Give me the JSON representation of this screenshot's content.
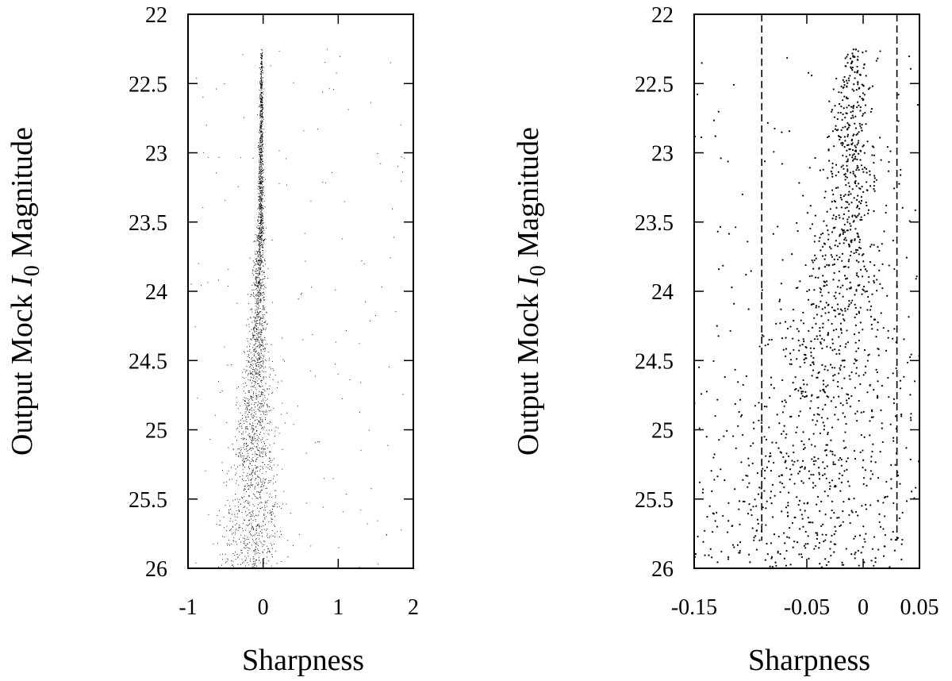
{
  "chart_data": [
    {
      "type": "scatter",
      "xlabel": "Sharpness",
      "ylabel": {
        "prefix": "Output Mock ",
        "italic": "I",
        "subscript": "0",
        "suffix": " Magnitude"
      },
      "xlim": [
        -1,
        2
      ],
      "ylim": [
        26,
        22
      ],
      "y_inverted": true,
      "xticks": [
        -1,
        0,
        1,
        2
      ],
      "xtick_labels": [
        "-1",
        "0",
        "1",
        "2"
      ],
      "yticks": [
        22,
        22.5,
        23,
        23.5,
        24,
        24.5,
        25,
        25.5,
        26
      ],
      "ytick_labels": [
        "22",
        "22.5",
        "23",
        "23.5",
        "24",
        "24.5",
        "25",
        "25.5",
        "26"
      ],
      "grid": false,
      "marker": "dot",
      "point_color": "#000000",
      "distribution": {
        "description_points": [
          {
            "mag": 22.25,
            "center": -0.02,
            "spread": 0.01
          },
          {
            "mag": 23.5,
            "center": -0.03,
            "spread": 0.03
          },
          {
            "mag": 24.5,
            "center": -0.08,
            "spread": 0.1
          },
          {
            "mag": 25.0,
            "center": -0.12,
            "spread": 0.2
          },
          {
            "mag": 26.0,
            "center": -0.15,
            "spread": 0.3
          }
        ],
        "mag_range": [
          22.25,
          26.0
        ],
        "n_points": 2600,
        "outlier_x_range": [
          -1.0,
          1.9
        ]
      }
    },
    {
      "type": "scatter",
      "xlabel": "Sharpness",
      "ylabel": {
        "prefix": "Output Mock ",
        "italic": "I",
        "subscript": "0",
        "suffix": " Magnitude"
      },
      "xlim": [
        -0.15,
        0.05
      ],
      "ylim": [
        26,
        22
      ],
      "y_inverted": true,
      "xticks": [
        -0.15,
        -0.05,
        0,
        0.05
      ],
      "xtick_labels": [
        "-0.15",
        "-0.05",
        "0",
        "0.05"
      ],
      "yticks": [
        22,
        22.5,
        23,
        23.5,
        24,
        24.5,
        25,
        25.5,
        26
      ],
      "ytick_labels": [
        "22",
        "22.5",
        "23",
        "23.5",
        "24",
        "24.5",
        "25",
        "25.5",
        "26"
      ],
      "grid": false,
      "marker": "dot",
      "point_color": "#000000",
      "cut_lines": [
        {
          "x": -0.09,
          "y_range": [
            22.0,
            25.8
          ],
          "style": "dashed"
        },
        {
          "x": 0.03,
          "y_range": [
            22.0,
            25.8
          ],
          "style": "dashed"
        }
      ],
      "distribution": {
        "description_points": [
          {
            "mag": 22.25,
            "center": -0.008,
            "spread": 0.008
          },
          {
            "mag": 23.5,
            "center": -0.015,
            "spread": 0.02
          },
          {
            "mag": 24.5,
            "center": -0.03,
            "spread": 0.04
          },
          {
            "mag": 25.0,
            "center": -0.045,
            "spread": 0.06
          },
          {
            "mag": 26.0,
            "center": -0.06,
            "spread": 0.08
          }
        ],
        "mag_range": [
          22.25,
          26.0
        ],
        "n_points": 1500
      }
    }
  ]
}
